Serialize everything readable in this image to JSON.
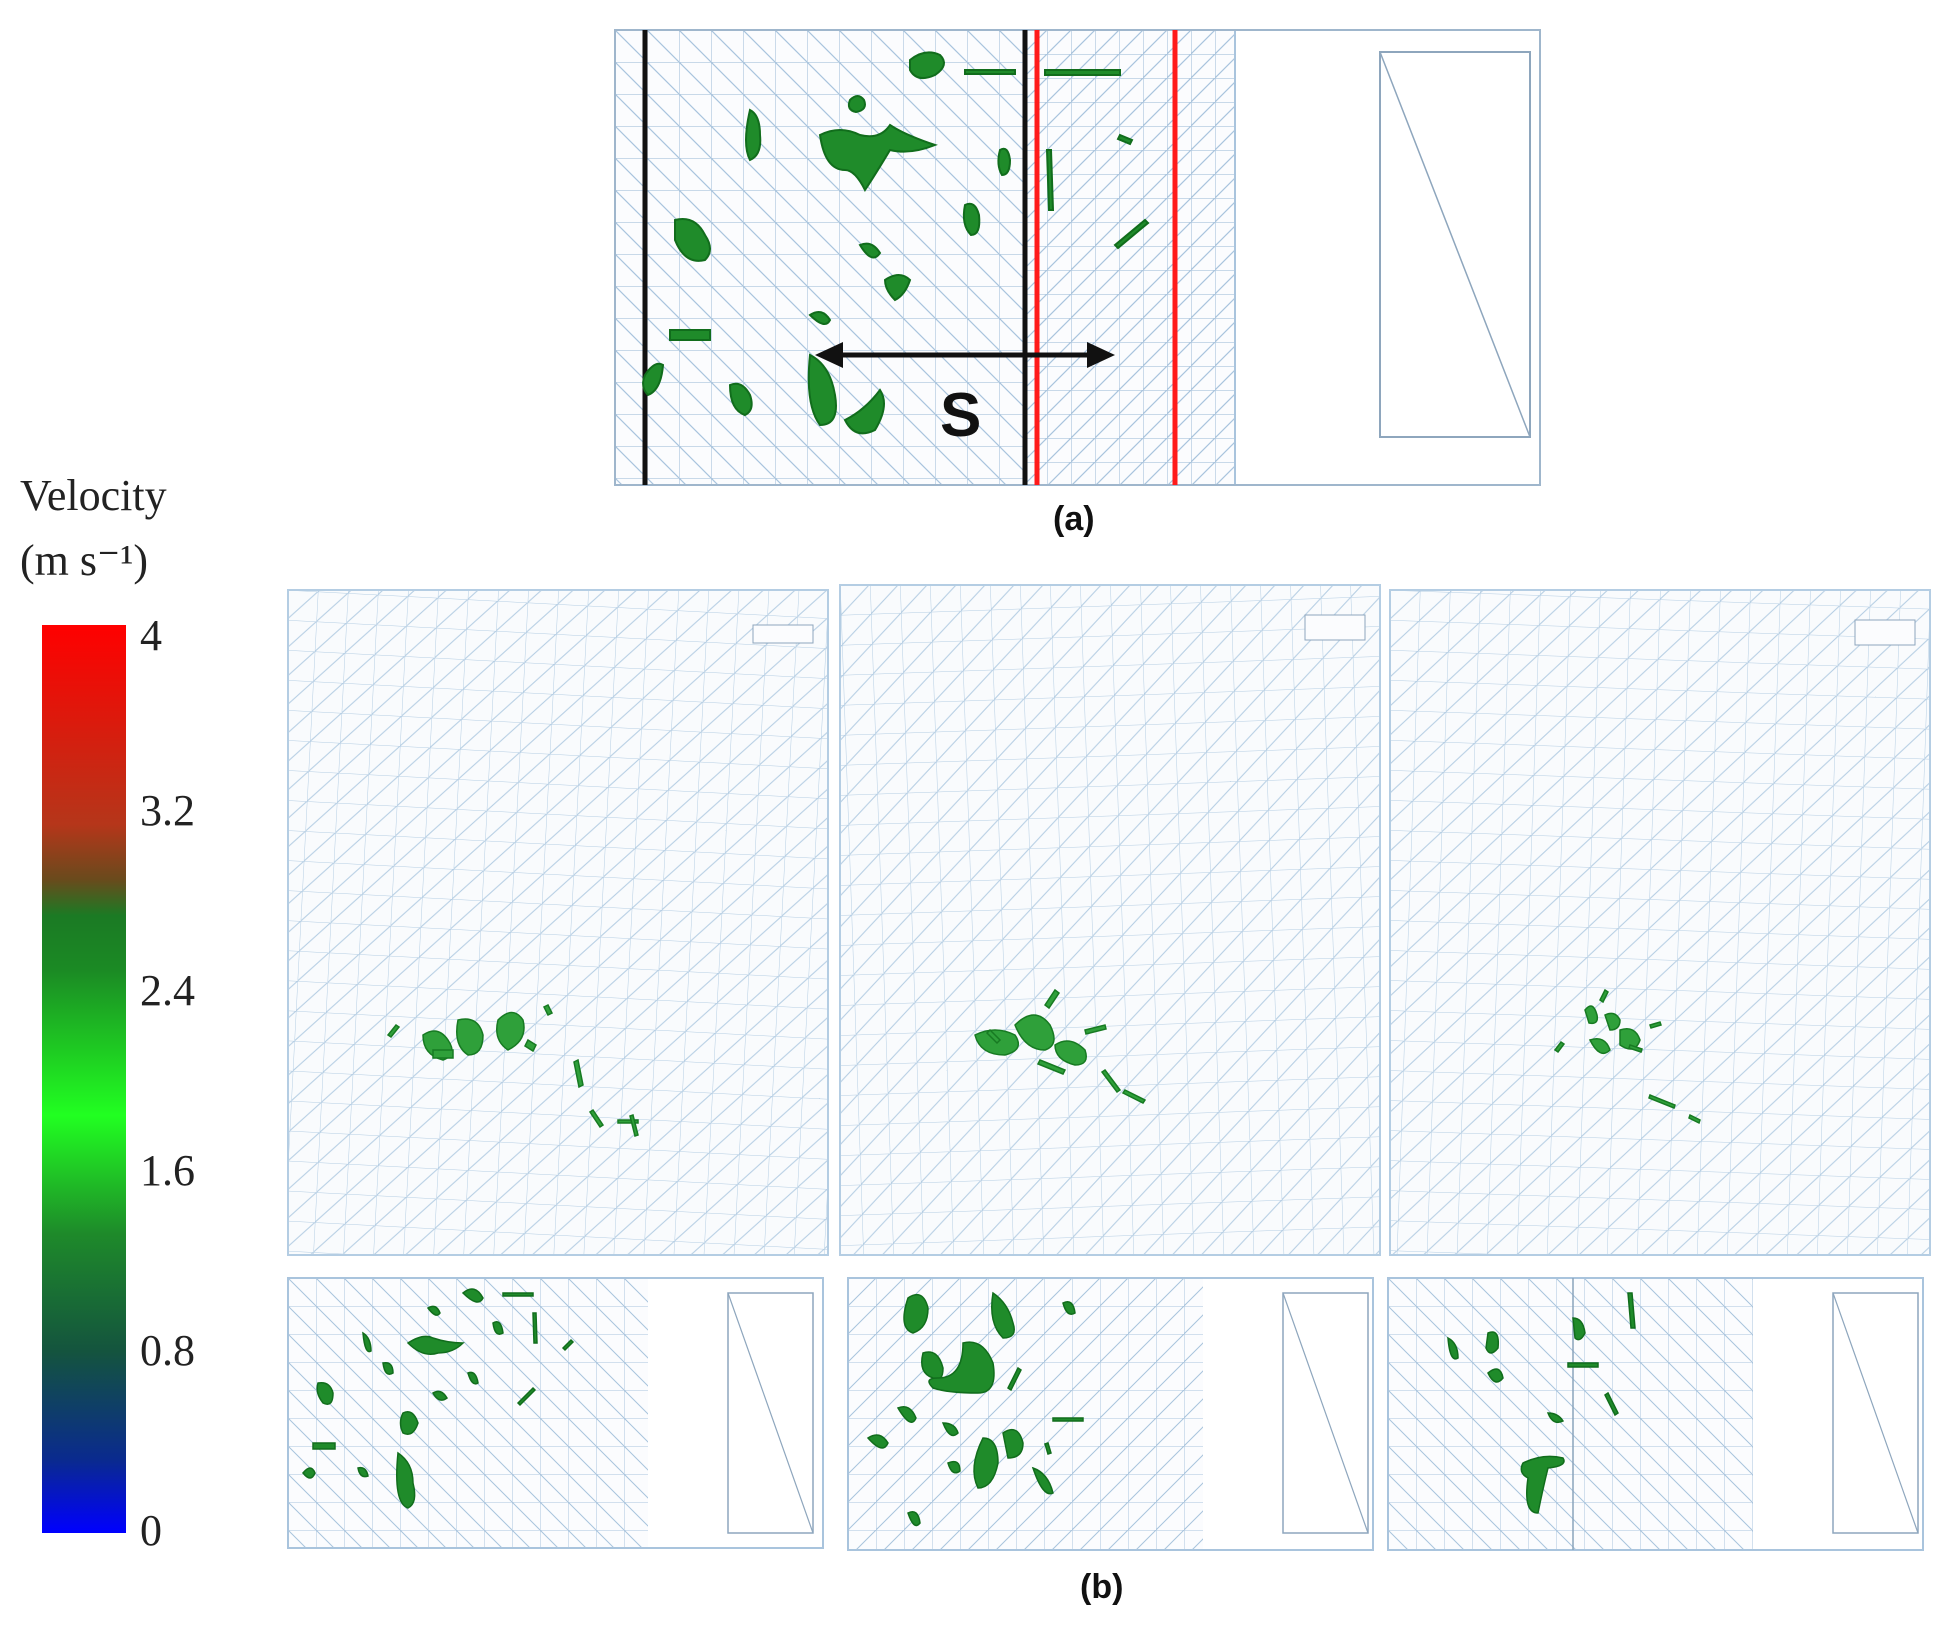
{
  "legend": {
    "title_line1": "Velocity",
    "title_line2": "(m s⁻¹)",
    "ticks": [
      "4",
      "3.2",
      "2.4",
      "1.6",
      "0.8",
      "0"
    ],
    "colors": [
      "#ff0000",
      "#b5361a",
      "#1b7a24",
      "#21ff21",
      "#14543e",
      "#0a2a8f",
      "#0000ff"
    ]
  },
  "panel_a": {
    "caption": "(a)",
    "spacing_label": "S"
  },
  "panel_b": {
    "caption": "(b)"
  },
  "colors": {
    "mesh": "#a9c4dd",
    "particle": "#1f8b2a",
    "particle_dark": "#0f6b1c",
    "wall_black": "#111111",
    "wall_red": "#ff1a1a"
  }
}
